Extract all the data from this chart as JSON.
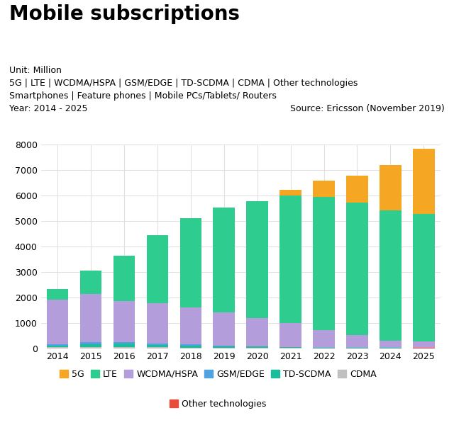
{
  "years": [
    2014,
    2015,
    2016,
    2017,
    2018,
    2019,
    2020,
    2021,
    2022,
    2023,
    2024,
    2025
  ],
  "title": "Mobile subscriptions",
  "subtitle_unit": "Unit: Million",
  "subtitle_tech": "5G | LTE | WCDMA/HSPA | GSM/EDGE | TD-SCDMA | CDMA | Other technologies",
  "subtitle_device": "Smartphones | Feature phones | Mobile PCs/Tablets/ Routers",
  "subtitle_year": "Year: 2014 - 2025",
  "source": "Source: Ericsson (November 2019)",
  "ylim": [
    0,
    8000
  ],
  "yticks": [
    0,
    1000,
    2000,
    3000,
    4000,
    5000,
    6000,
    7000,
    8000
  ],
  "series": {
    "5G": [
      0,
      0,
      0,
      0,
      0,
      0,
      0,
      200,
      650,
      1050,
      1800,
      2550
    ],
    "LTE": [
      400,
      900,
      1800,
      2650,
      3500,
      4100,
      4600,
      5000,
      5200,
      5200,
      5100,
      5000
    ],
    "WCDMA/HSPA": [
      1750,
      1900,
      1600,
      1600,
      1450,
      1300,
      1100,
      950,
      700,
      500,
      280,
      250
    ],
    "GSM/EDGE": [
      60,
      70,
      60,
      50,
      40,
      30,
      20,
      15,
      10,
      10,
      10,
      10
    ],
    "TD-SCDMA": [
      60,
      120,
      130,
      90,
      80,
      70,
      50,
      30,
      15,
      10,
      5,
      5
    ],
    "CDMA": [
      50,
      50,
      50,
      40,
      30,
      20,
      15,
      10,
      5,
      5,
      5,
      5
    ],
    "Other technologies": [
      10,
      10,
      10,
      10,
      10,
      5,
      5,
      5,
      5,
      5,
      5,
      20
    ]
  },
  "colors": {
    "5G": "#f5a623",
    "LTE": "#2ecc8e",
    "WCDMA/HSPA": "#b39ddb",
    "GSM/EDGE": "#4fa3e0",
    "TD-SCDMA": "#1abc9c",
    "CDMA": "#c0c0c0",
    "Other technologies": "#e74c3c"
  },
  "stack_order": [
    "Other technologies",
    "CDMA",
    "TD-SCDMA",
    "GSM/EDGE",
    "WCDMA/HSPA",
    "LTE",
    "5G"
  ],
  "legend_row1": [
    "5G",
    "LTE",
    "WCDMA/HSPA",
    "GSM/EDGE",
    "TD-SCDMA",
    "CDMA"
  ],
  "legend_row2": [
    "Other technologies"
  ],
  "background_color": "#ffffff",
  "grid_color": "#e0e0e0",
  "title_fontsize": 20,
  "subtitle_fontsize": 9,
  "tick_fontsize": 9
}
